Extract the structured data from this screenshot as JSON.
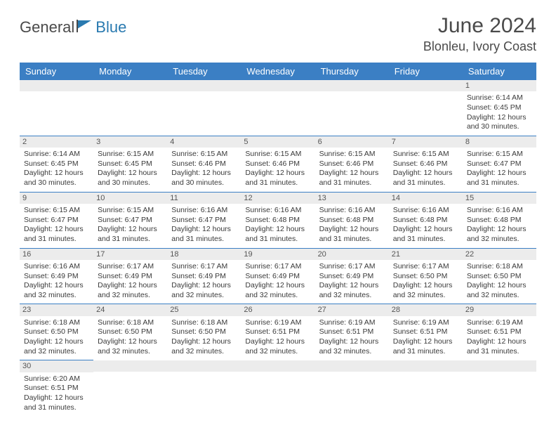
{
  "logo": {
    "part1": "General",
    "part2": "Blue"
  },
  "title": "June 2024",
  "location": "Blonleu, Ivory Coast",
  "colors": {
    "header_bg": "#3b7fc4",
    "header_text": "#ffffff",
    "daynum_bg": "#ececec",
    "border": "#3b7fc4",
    "text": "#3a3a3a"
  },
  "daysOfWeek": [
    "Sunday",
    "Monday",
    "Tuesday",
    "Wednesday",
    "Thursday",
    "Friday",
    "Saturday"
  ],
  "weeks": [
    [
      null,
      null,
      null,
      null,
      null,
      null,
      {
        "n": "1",
        "sr": "Sunrise: 6:14 AM",
        "ss": "Sunset: 6:45 PM",
        "dl1": "Daylight: 12 hours",
        "dl2": "and 30 minutes."
      }
    ],
    [
      {
        "n": "2",
        "sr": "Sunrise: 6:14 AM",
        "ss": "Sunset: 6:45 PM",
        "dl1": "Daylight: 12 hours",
        "dl2": "and 30 minutes."
      },
      {
        "n": "3",
        "sr": "Sunrise: 6:15 AM",
        "ss": "Sunset: 6:45 PM",
        "dl1": "Daylight: 12 hours",
        "dl2": "and 30 minutes."
      },
      {
        "n": "4",
        "sr": "Sunrise: 6:15 AM",
        "ss": "Sunset: 6:46 PM",
        "dl1": "Daylight: 12 hours",
        "dl2": "and 30 minutes."
      },
      {
        "n": "5",
        "sr": "Sunrise: 6:15 AM",
        "ss": "Sunset: 6:46 PM",
        "dl1": "Daylight: 12 hours",
        "dl2": "and 31 minutes."
      },
      {
        "n": "6",
        "sr": "Sunrise: 6:15 AM",
        "ss": "Sunset: 6:46 PM",
        "dl1": "Daylight: 12 hours",
        "dl2": "and 31 minutes."
      },
      {
        "n": "7",
        "sr": "Sunrise: 6:15 AM",
        "ss": "Sunset: 6:46 PM",
        "dl1": "Daylight: 12 hours",
        "dl2": "and 31 minutes."
      },
      {
        "n": "8",
        "sr": "Sunrise: 6:15 AM",
        "ss": "Sunset: 6:47 PM",
        "dl1": "Daylight: 12 hours",
        "dl2": "and 31 minutes."
      }
    ],
    [
      {
        "n": "9",
        "sr": "Sunrise: 6:15 AM",
        "ss": "Sunset: 6:47 PM",
        "dl1": "Daylight: 12 hours",
        "dl2": "and 31 minutes."
      },
      {
        "n": "10",
        "sr": "Sunrise: 6:15 AM",
        "ss": "Sunset: 6:47 PM",
        "dl1": "Daylight: 12 hours",
        "dl2": "and 31 minutes."
      },
      {
        "n": "11",
        "sr": "Sunrise: 6:16 AM",
        "ss": "Sunset: 6:47 PM",
        "dl1": "Daylight: 12 hours",
        "dl2": "and 31 minutes."
      },
      {
        "n": "12",
        "sr": "Sunrise: 6:16 AM",
        "ss": "Sunset: 6:48 PM",
        "dl1": "Daylight: 12 hours",
        "dl2": "and 31 minutes."
      },
      {
        "n": "13",
        "sr": "Sunrise: 6:16 AM",
        "ss": "Sunset: 6:48 PM",
        "dl1": "Daylight: 12 hours",
        "dl2": "and 31 minutes."
      },
      {
        "n": "14",
        "sr": "Sunrise: 6:16 AM",
        "ss": "Sunset: 6:48 PM",
        "dl1": "Daylight: 12 hours",
        "dl2": "and 31 minutes."
      },
      {
        "n": "15",
        "sr": "Sunrise: 6:16 AM",
        "ss": "Sunset: 6:48 PM",
        "dl1": "Daylight: 12 hours",
        "dl2": "and 32 minutes."
      }
    ],
    [
      {
        "n": "16",
        "sr": "Sunrise: 6:16 AM",
        "ss": "Sunset: 6:49 PM",
        "dl1": "Daylight: 12 hours",
        "dl2": "and 32 minutes."
      },
      {
        "n": "17",
        "sr": "Sunrise: 6:17 AM",
        "ss": "Sunset: 6:49 PM",
        "dl1": "Daylight: 12 hours",
        "dl2": "and 32 minutes."
      },
      {
        "n": "18",
        "sr": "Sunrise: 6:17 AM",
        "ss": "Sunset: 6:49 PM",
        "dl1": "Daylight: 12 hours",
        "dl2": "and 32 minutes."
      },
      {
        "n": "19",
        "sr": "Sunrise: 6:17 AM",
        "ss": "Sunset: 6:49 PM",
        "dl1": "Daylight: 12 hours",
        "dl2": "and 32 minutes."
      },
      {
        "n": "20",
        "sr": "Sunrise: 6:17 AM",
        "ss": "Sunset: 6:49 PM",
        "dl1": "Daylight: 12 hours",
        "dl2": "and 32 minutes."
      },
      {
        "n": "21",
        "sr": "Sunrise: 6:17 AM",
        "ss": "Sunset: 6:50 PM",
        "dl1": "Daylight: 12 hours",
        "dl2": "and 32 minutes."
      },
      {
        "n": "22",
        "sr": "Sunrise: 6:18 AM",
        "ss": "Sunset: 6:50 PM",
        "dl1": "Daylight: 12 hours",
        "dl2": "and 32 minutes."
      }
    ],
    [
      {
        "n": "23",
        "sr": "Sunrise: 6:18 AM",
        "ss": "Sunset: 6:50 PM",
        "dl1": "Daylight: 12 hours",
        "dl2": "and 32 minutes."
      },
      {
        "n": "24",
        "sr": "Sunrise: 6:18 AM",
        "ss": "Sunset: 6:50 PM",
        "dl1": "Daylight: 12 hours",
        "dl2": "and 32 minutes."
      },
      {
        "n": "25",
        "sr": "Sunrise: 6:18 AM",
        "ss": "Sunset: 6:50 PM",
        "dl1": "Daylight: 12 hours",
        "dl2": "and 32 minutes."
      },
      {
        "n": "26",
        "sr": "Sunrise: 6:19 AM",
        "ss": "Sunset: 6:51 PM",
        "dl1": "Daylight: 12 hours",
        "dl2": "and 32 minutes."
      },
      {
        "n": "27",
        "sr": "Sunrise: 6:19 AM",
        "ss": "Sunset: 6:51 PM",
        "dl1": "Daylight: 12 hours",
        "dl2": "and 32 minutes."
      },
      {
        "n": "28",
        "sr": "Sunrise: 6:19 AM",
        "ss": "Sunset: 6:51 PM",
        "dl1": "Daylight: 12 hours",
        "dl2": "and 31 minutes."
      },
      {
        "n": "29",
        "sr": "Sunrise: 6:19 AM",
        "ss": "Sunset: 6:51 PM",
        "dl1": "Daylight: 12 hours",
        "dl2": "and 31 minutes."
      }
    ],
    [
      {
        "n": "30",
        "sr": "Sunrise: 6:20 AM",
        "ss": "Sunset: 6:51 PM",
        "dl1": "Daylight: 12 hours",
        "dl2": "and 31 minutes."
      },
      null,
      null,
      null,
      null,
      null,
      null
    ]
  ]
}
